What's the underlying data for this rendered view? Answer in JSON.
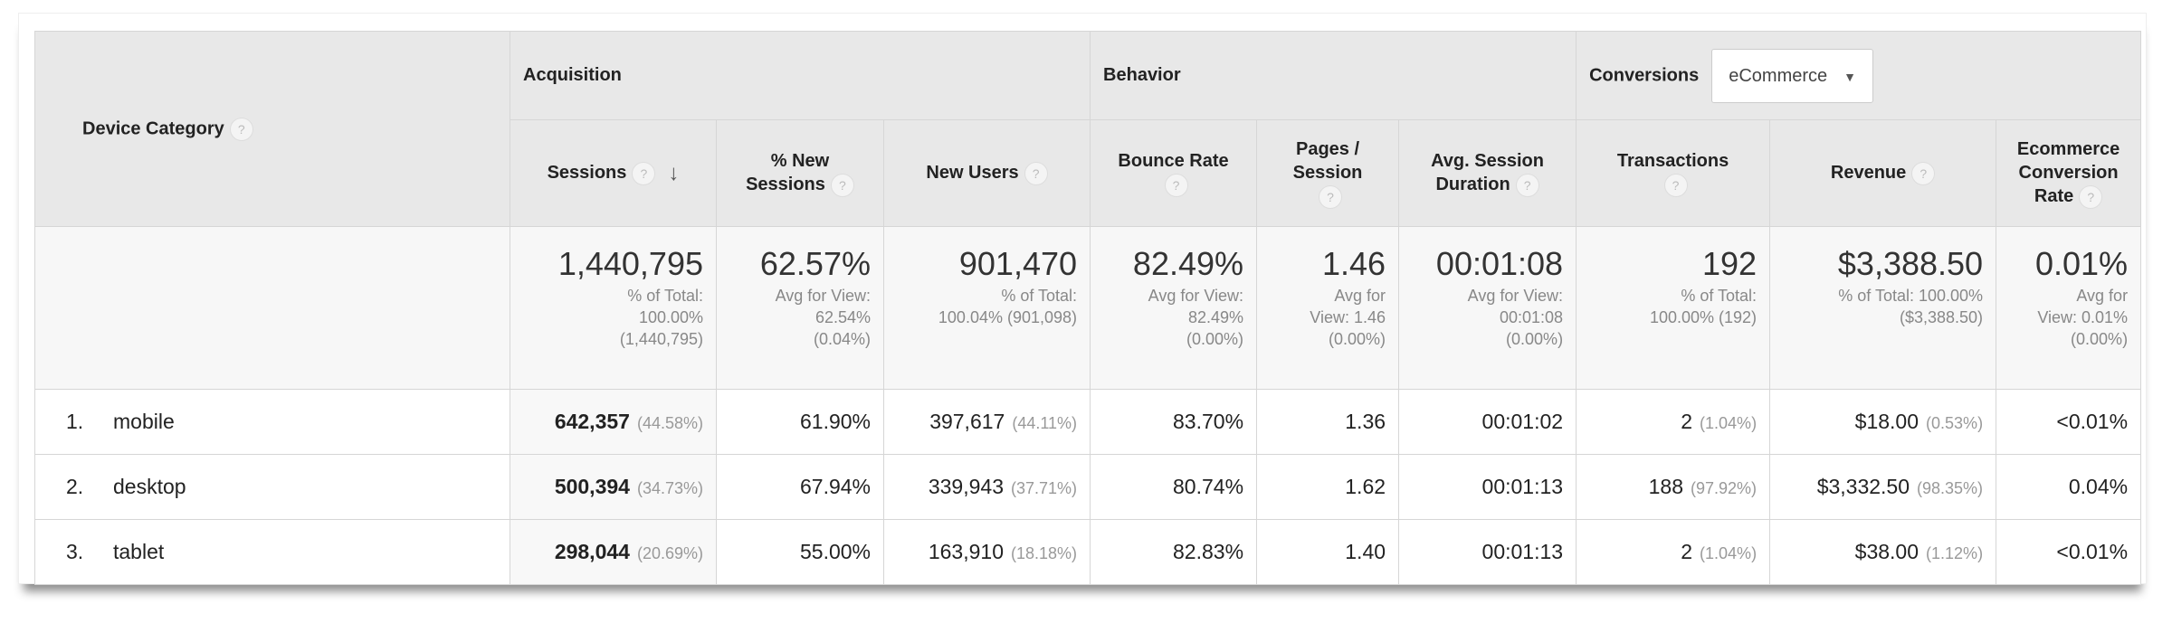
{
  "header": {
    "dimension": "Device Category",
    "groups": {
      "acquisition": "Acquisition",
      "behavior": "Behavior",
      "conversions": "Conversions"
    },
    "conversion_select": "eCommerce",
    "columns": [
      "Sessions",
      "% New Sessions",
      "New Users",
      "Bounce Rate",
      "Pages / Session",
      "Avg. Session Duration",
      "Transactions",
      "Revenue",
      "Ecommerce Conversion Rate"
    ],
    "help_icon": "?",
    "sort_icon": "↓",
    "caret_icon": "▼"
  },
  "summary": [
    {
      "value": "1,440,795",
      "l1": "% of Total:",
      "l2": "100.00%",
      "l3": "(1,440,795)"
    },
    {
      "value": "62.57%",
      "l1": "Avg for View:",
      "l2": "62.54%",
      "l3": "(0.04%)"
    },
    {
      "value": "901,470",
      "l1": "% of Total:",
      "l2": "100.04% (901,098)",
      "l3": ""
    },
    {
      "value": "82.49%",
      "l1": "Avg for View:",
      "l2": "82.49%",
      "l3": "(0.00%)"
    },
    {
      "value": "1.46",
      "l1": "Avg for",
      "l2": "View: 1.46",
      "l3": "(0.00%)"
    },
    {
      "value": "00:01:08",
      "l1": "Avg for View:",
      "l2": "00:01:08",
      "l3": "(0.00%)"
    },
    {
      "value": "192",
      "l1": "% of Total:",
      "l2": "100.00% (192)",
      "l3": ""
    },
    {
      "value": "$3,388.50",
      "l1": "% of Total: 100.00%",
      "l2": "($3,388.50)",
      "l3": ""
    },
    {
      "value": "0.01%",
      "l1": "Avg for",
      "l2": "View: 0.01%",
      "l3": "(0.00%)"
    }
  ],
  "rows": [
    {
      "idx": "1.",
      "device": "mobile",
      "sessions": "642,357",
      "sessions_pct": "(44.58%)",
      "new_sessions": "61.90%",
      "new_users": "397,617",
      "new_users_pct": "(44.11%)",
      "bounce": "83.70%",
      "pages": "1.36",
      "duration": "00:01:02",
      "transactions": "2",
      "transactions_pct": "(1.04%)",
      "revenue": "$18.00",
      "revenue_pct": "(0.53%)",
      "conv_rate": "<0.01%"
    },
    {
      "idx": "2.",
      "device": "desktop",
      "sessions": "500,394",
      "sessions_pct": "(34.73%)",
      "new_sessions": "67.94%",
      "new_users": "339,943",
      "new_users_pct": "(37.71%)",
      "bounce": "80.74%",
      "pages": "1.62",
      "duration": "00:01:13",
      "transactions": "188",
      "transactions_pct": "(97.92%)",
      "revenue": "$3,332.50",
      "revenue_pct": "(98.35%)",
      "conv_rate": "0.04%"
    },
    {
      "idx": "3.",
      "device": "tablet",
      "sessions": "298,044",
      "sessions_pct": "(20.69%)",
      "new_sessions": "55.00%",
      "new_users": "163,910",
      "new_users_pct": "(18.18%)",
      "bounce": "82.83%",
      "pages": "1.40",
      "duration": "00:01:13",
      "transactions": "2",
      "transactions_pct": "(1.04%)",
      "revenue": "$38.00",
      "revenue_pct": "(1.12%)",
      "conv_rate": "<0.01%"
    }
  ]
}
